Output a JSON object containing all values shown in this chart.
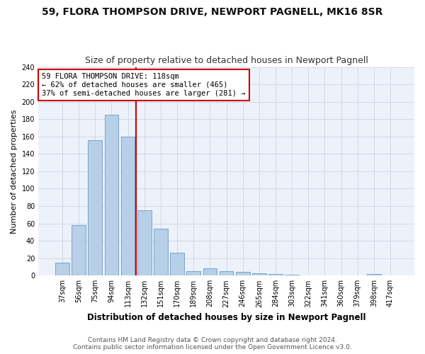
{
  "title": "59, FLORA THOMPSON DRIVE, NEWPORT PAGNELL, MK16 8SR",
  "subtitle": "Size of property relative to detached houses in Newport Pagnell",
  "xlabel": "Distribution of detached houses by size in Newport Pagnell",
  "ylabel": "Number of detached properties",
  "categories": [
    "37sqm",
    "56sqm",
    "75sqm",
    "94sqm",
    "113sqm",
    "132sqm",
    "151sqm",
    "170sqm",
    "189sqm",
    "208sqm",
    "227sqm",
    "246sqm",
    "265sqm",
    "284sqm",
    "303sqm",
    "322sqm",
    "341sqm",
    "360sqm",
    "379sqm",
    "398sqm",
    "417sqm"
  ],
  "values": [
    15,
    58,
    156,
    185,
    160,
    75,
    54,
    26,
    5,
    8,
    5,
    4,
    3,
    2,
    1,
    0,
    0,
    0,
    0,
    2,
    0
  ],
  "bar_color": "#b8cfe8",
  "bar_edge_color": "#6899c8",
  "grid_color": "#d0d8e8",
  "background_color": "#edf2fa",
  "annotation_text_line1": "59 FLORA THOMPSON DRIVE: 118sqm",
  "annotation_text_line2": "← 62% of detached houses are smaller (465)",
  "annotation_text_line3": "37% of semi-detached houses are larger (281) →",
  "annotation_box_color": "#ffffff",
  "annotation_box_edge_color": "#cc0000",
  "red_line_color": "#cc0000",
  "footer_line1": "Contains HM Land Registry data © Crown copyright and database right 2024.",
  "footer_line2": "Contains public sector information licensed under the Open Government Licence v3.0.",
  "ylim": [
    0,
    240
  ],
  "title_fontsize": 10,
  "subtitle_fontsize": 9,
  "xlabel_fontsize": 8.5,
  "ylabel_fontsize": 8,
  "tick_fontsize": 7,
  "annotation_fontsize": 7.5,
  "footer_fontsize": 6.5
}
